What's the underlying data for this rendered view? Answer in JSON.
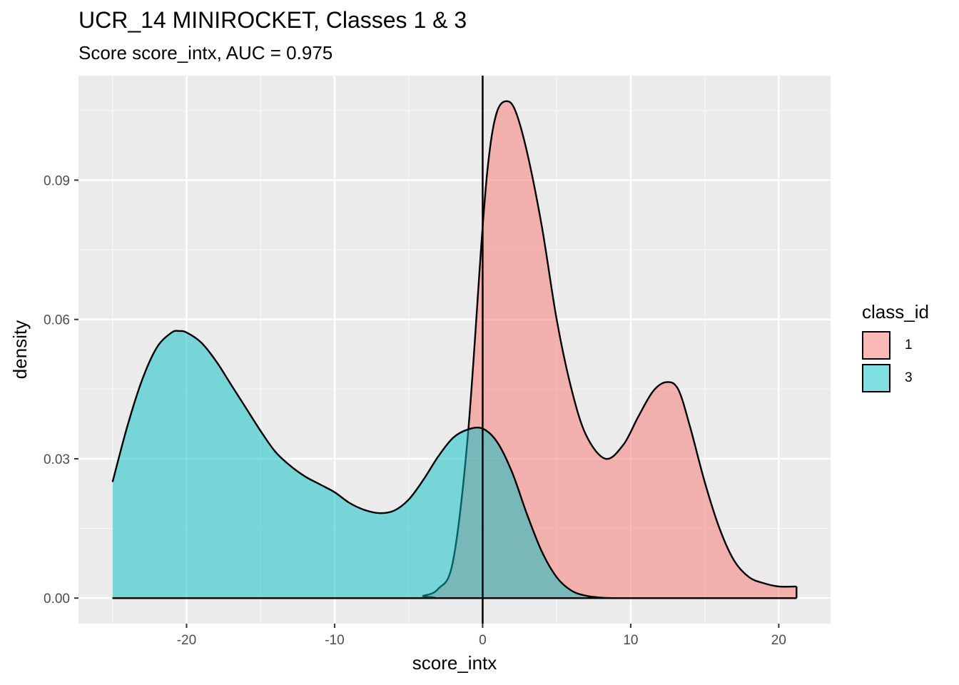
{
  "chart_data": {
    "type": "area",
    "title": "UCR_14 MINIROCKET, Classes 1 & 3",
    "subtitle": "Score score_intx, AUC = 0.975",
    "xlabel": "score_intx",
    "ylabel": "density",
    "xlim": [
      -27.3,
      23.5
    ],
    "ylim": [
      -0.0055,
      0.1125
    ],
    "x_ticks": [
      -20,
      -10,
      0,
      10,
      20
    ],
    "x_tick_labels": [
      "-20",
      "-10",
      "0",
      "10",
      "20"
    ],
    "y_ticks": [
      0.0,
      0.03,
      0.06,
      0.09
    ],
    "y_tick_labels": [
      "0.00",
      "0.03",
      "0.06",
      "0.09"
    ],
    "vline": 0,
    "grid": true,
    "legend_position": "right",
    "legend_title": "class_id",
    "series": [
      {
        "name": "1",
        "color": "#F8766D",
        "x": [
          -25.0,
          -5.0,
          -4.0,
          -3.0,
          -2.0,
          -1.0,
          0.0,
          0.5,
          1.0,
          1.6,
          2.2,
          3.0,
          4.0,
          5.0,
          6.0,
          7.0,
          8.3,
          9.5,
          10.5,
          11.5,
          12.4,
          13.2,
          14.0,
          15.0,
          16.0,
          17.0,
          18.0,
          19.0,
          20.0,
          21.2
        ],
        "values": [
          0.0,
          0.0,
          0.0005,
          0.002,
          0.008,
          0.035,
          0.08,
          0.097,
          0.105,
          0.107,
          0.105,
          0.096,
          0.08,
          0.06,
          0.045,
          0.035,
          0.03,
          0.033,
          0.039,
          0.0445,
          0.0465,
          0.045,
          0.037,
          0.025,
          0.015,
          0.008,
          0.0045,
          0.0032,
          0.0025,
          0.0025
        ]
      },
      {
        "name": "3",
        "color": "#00BFC4",
        "x": [
          -25.0,
          -24.0,
          -23.0,
          -22.0,
          -21.0,
          -20.5,
          -20.0,
          -19.0,
          -18.0,
          -17.0,
          -16.0,
          -15.0,
          -14.0,
          -13.0,
          -12.0,
          -11.0,
          -10.0,
          -9.0,
          -8.0,
          -7.0,
          -6.0,
          -5.0,
          -4.0,
          -3.0,
          -2.0,
          -1.0,
          0.0,
          1.0,
          2.0,
          3.0,
          4.0,
          5.0,
          6.0,
          7.0,
          8.0,
          9.0,
          10.0,
          11.0,
          12.0,
          13.0,
          14.0,
          15.0,
          16.0,
          17.0,
          18.0,
          19.0,
          20.0,
          21.2
        ],
        "values": [
          0.025,
          0.037,
          0.047,
          0.054,
          0.0572,
          0.0575,
          0.0572,
          0.055,
          0.051,
          0.046,
          0.041,
          0.036,
          0.0315,
          0.0285,
          0.0262,
          0.0245,
          0.0228,
          0.0205,
          0.019,
          0.0183,
          0.0188,
          0.0212,
          0.0255,
          0.0305,
          0.0345,
          0.0363,
          0.0365,
          0.0335,
          0.027,
          0.018,
          0.01,
          0.0045,
          0.0016,
          0.0005,
          0.0001,
          0.0,
          0.0,
          0.0,
          0.0,
          0.0,
          0.0,
          0.0,
          0.0,
          0.0,
          0.0,
          0.0,
          0.0,
          0.0
        ]
      }
    ]
  }
}
